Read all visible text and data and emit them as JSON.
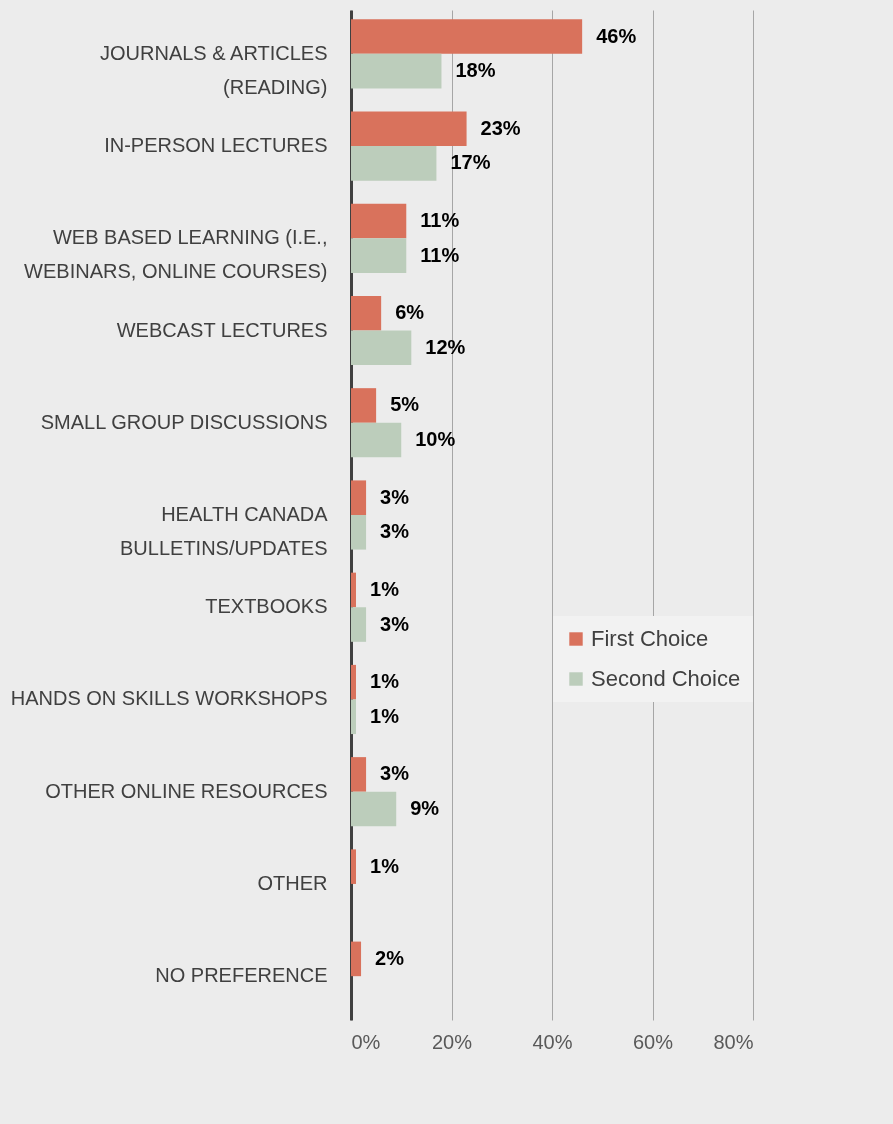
{
  "chart_data": {
    "type": "bar",
    "orientation": "horizontal",
    "categories": [
      "JOURNALS & ARTICLES (READING)",
      "IN-PERSON LECTURES",
      "WEB BASED LEARNING (I.E., WEBINARS, ONLINE COURSES)",
      "WEBCAST LECTURES",
      "SMALL GROUP DISCUSSIONS",
      "HEALTH CANADA BULLETINS/UPDATES",
      "TEXTBOOKS",
      "HANDS ON SKILLS WORKSHOPS",
      "OTHER ONLINE RESOURCES",
      "OTHER",
      "NO PREFERENCE"
    ],
    "series": [
      {
        "name": "First Choice",
        "color": "#d9725c",
        "values": [
          46,
          23,
          11,
          6,
          5,
          3,
          1,
          1,
          3,
          1,
          2
        ],
        "value_labels": [
          "46%",
          "23%",
          "11%",
          "6%",
          "5%",
          "3%",
          "1%",
          "1%",
          "3%",
          "1%",
          "2%"
        ]
      },
      {
        "name": "Second Choice",
        "color": "#bccdbb",
        "values": [
          18,
          17,
          11,
          12,
          10,
          3,
          3,
          1,
          9,
          null,
          null
        ],
        "value_labels": [
          "18%",
          "17%",
          "11%",
          "12%",
          "10%",
          "3%",
          "3%",
          "1%",
          "9%",
          null,
          null
        ]
      }
    ],
    "xlim": [
      0,
      80
    ],
    "xticks": [
      {
        "value": 0,
        "label": "0%"
      },
      {
        "value": 20,
        "label": "20%"
      },
      {
        "value": 40,
        "label": "40%"
      },
      {
        "value": 60,
        "label": "60%"
      },
      {
        "value": 80,
        "label": "80%"
      }
    ],
    "grid": "x",
    "legend": "right"
  }
}
